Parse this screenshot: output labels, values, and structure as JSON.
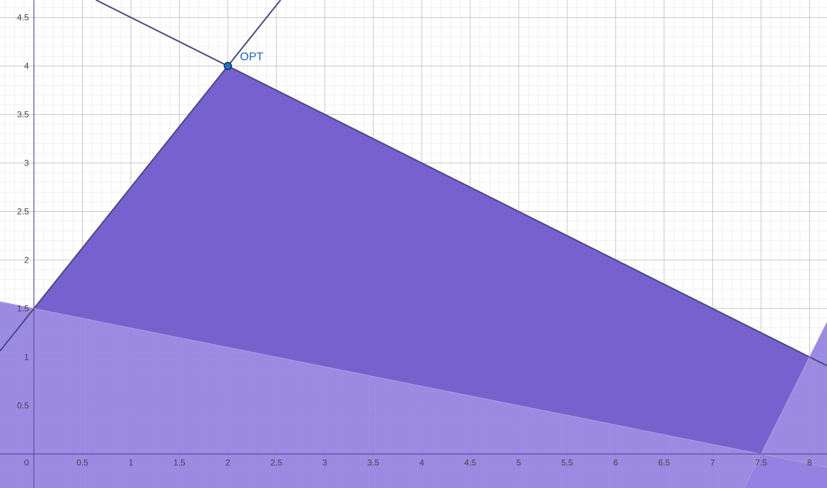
{
  "chart_data": {
    "type": "area",
    "xlim": [
      -0.35,
      8.18
    ],
    "ylim": [
      -0.35,
      4.68
    ],
    "grid": true,
    "x_ticks": [
      {
        "value": 0,
        "label": "0"
      },
      {
        "value": 0.5,
        "label": "0.5"
      },
      {
        "value": 1,
        "label": "1"
      },
      {
        "value": 1.5,
        "label": "1.5"
      },
      {
        "value": 2,
        "label": "2"
      },
      {
        "value": 2.5,
        "label": "2.5"
      },
      {
        "value": 3,
        "label": "3"
      },
      {
        "value": 3.5,
        "label": "3.5"
      },
      {
        "value": 4,
        "label": "4"
      },
      {
        "value": 4.5,
        "label": "4.5"
      },
      {
        "value": 5,
        "label": "5"
      },
      {
        "value": 5.5,
        "label": "5.5"
      },
      {
        "value": 6,
        "label": "6"
      },
      {
        "value": 6.5,
        "label": "6.5"
      },
      {
        "value": 7,
        "label": "7"
      },
      {
        "value": 7.5,
        "label": "7.5"
      },
      {
        "value": 8,
        "label": "8"
      }
    ],
    "y_ticks": [
      {
        "value": 0.5,
        "label": "0.5"
      },
      {
        "value": 1,
        "label": "1"
      },
      {
        "value": 1.5,
        "label": "1.5"
      },
      {
        "value": 2,
        "label": "2"
      },
      {
        "value": 2.5,
        "label": "2.5"
      },
      {
        "value": 3,
        "label": "3"
      },
      {
        "value": 3.5,
        "label": "3.5"
      },
      {
        "value": 4,
        "label": "4"
      },
      {
        "value": 4.5,
        "label": "4.5"
      }
    ],
    "regions": [
      {
        "shape": "half-plane",
        "line_points": [
          [
            0,
            1.5
          ],
          [
            7.5,
            0
          ]
        ],
        "fills_side": "below",
        "fill": "#9381e1",
        "opacity": 0.92
      },
      {
        "shape": "half-plane",
        "line_points": [
          [
            7.5,
            0
          ],
          [
            8,
            1
          ]
        ],
        "fills_side": "right",
        "fill": "#9381e1",
        "opacity": 0.92
      },
      {
        "shape": "polygon",
        "vertices": [
          [
            0,
            1.5
          ],
          [
            2,
            4
          ],
          [
            8,
            1
          ],
          [
            7.5,
            0
          ]
        ],
        "fill": "#7761cf",
        "opacity": 1
      }
    ],
    "lines": [
      {
        "points": [
          [
            0,
            1.5
          ],
          [
            2,
            4
          ]
        ],
        "color": "#4a4a7e",
        "width": 2
      },
      {
        "points": [
          [
            2,
            4
          ],
          [
            8,
            1
          ]
        ],
        "color": "#4a4a7e",
        "width": 2
      },
      {
        "points": [
          [
            0,
            1.5
          ],
          [
            7.5,
            0
          ]
        ],
        "color": "#b79ad8",
        "width": 1
      },
      {
        "points": [
          [
            7.5,
            0
          ],
          [
            8,
            1
          ]
        ],
        "color": "#b79ad8",
        "width": 1
      }
    ],
    "points": [
      {
        "x": 2,
        "y": 4,
        "label": "OPT",
        "color": "#1f77c4",
        "label_color": "#1f66b8"
      }
    ]
  }
}
